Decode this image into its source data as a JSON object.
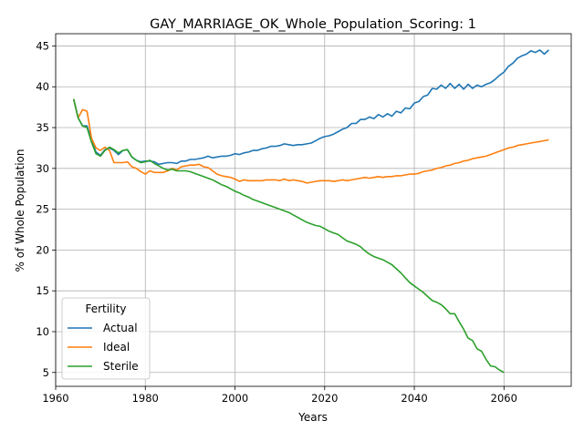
{
  "chart_data": {
    "type": "line",
    "title": "GAY_MARRIAGE_OK_Whole_Population_Scoring: 1",
    "xlabel": "Years",
    "ylabel": "% of Whole Population",
    "xlim": [
      1960,
      2075
    ],
    "ylim": [
      3.3,
      46.5
    ],
    "xticks": [
      1960,
      1980,
      2000,
      2020,
      2040,
      2060
    ],
    "yticks": [
      5,
      10,
      15,
      20,
      25,
      30,
      35,
      40,
      45
    ],
    "grid": true,
    "legend": {
      "title": "Fertility",
      "placement": "lower-left"
    },
    "series": [
      {
        "name": "Actual",
        "color": "#1f77b4",
        "x": [
          1964,
          1965,
          1966,
          1967,
          1968,
          1969,
          1970,
          1971,
          1972,
          1973,
          1974,
          1975,
          1976,
          1977,
          1978,
          1979,
          1980,
          1981,
          1982,
          1983,
          1984,
          1985,
          1986,
          1987,
          1988,
          1989,
          1990,
          1991,
          1992,
          1993,
          1994,
          1995,
          1996,
          1997,
          1998,
          1999,
          2000,
          2001,
          2002,
          2003,
          2004,
          2005,
          2006,
          2007,
          2008,
          2009,
          2010,
          2011,
          2012,
          2013,
          2014,
          2015,
          2016,
          2017,
          2018,
          2019,
          2020,
          2021,
          2022,
          2023,
          2024,
          2025,
          2026,
          2027,
          2028,
          2029,
          2030,
          2031,
          2032,
          2033,
          2034,
          2035,
          2036,
          2037,
          2038,
          2039,
          2040,
          2041,
          2042,
          2043,
          2044,
          2045,
          2046,
          2047,
          2048,
          2049,
          2050,
          2051,
          2052,
          2053,
          2054,
          2055,
          2056,
          2057,
          2058,
          2059,
          2060,
          2061,
          2062,
          2063,
          2064,
          2065,
          2066,
          2067,
          2068,
          2069,
          2070
        ],
        "values": [
          38.5,
          36.2,
          35.2,
          35.2,
          33.5,
          32.0,
          31.6,
          32.3,
          32.5,
          32.2,
          31.7,
          32.2,
          32.3,
          31.4,
          31.0,
          30.8,
          30.9,
          30.9,
          30.8,
          30.5,
          30.6,
          30.7,
          30.7,
          30.6,
          30.9,
          30.9,
          31.1,
          31.1,
          31.2,
          31.3,
          31.5,
          31.3,
          31.4,
          31.5,
          31.5,
          31.6,
          31.8,
          31.7,
          31.9,
          32.0,
          32.2,
          32.2,
          32.4,
          32.5,
          32.7,
          32.7,
          32.8,
          33.0,
          32.9,
          32.8,
          32.9,
          32.9,
          33.0,
          33.1,
          33.4,
          33.7,
          33.9,
          34.0,
          34.2,
          34.5,
          34.8,
          35.0,
          35.5,
          35.5,
          36.0,
          36.0,
          36.3,
          36.1,
          36.6,
          36.3,
          36.7,
          36.4,
          37.0,
          36.8,
          37.4,
          37.3,
          38.0,
          38.2,
          38.8,
          39.0,
          39.8,
          39.7,
          40.2,
          39.8,
          40.4,
          39.8,
          40.3,
          39.7,
          40.3,
          39.8,
          40.2,
          40.0,
          40.3,
          40.5,
          40.9,
          41.4,
          41.8,
          42.5,
          42.9,
          43.5,
          43.8,
          44.0,
          44.4,
          44.2,
          44.5,
          44.0,
          44.5
        ]
      },
      {
        "name": "Ideal",
        "color": "#ff7f0e",
        "x": [
          1964,
          1965,
          1966,
          1967,
          1968,
          1969,
          1970,
          1971,
          1972,
          1973,
          1974,
          1975,
          1976,
          1977,
          1978,
          1979,
          1980,
          1981,
          1982,
          1983,
          1984,
          1985,
          1986,
          1987,
          1988,
          1989,
          1990,
          1991,
          1992,
          1993,
          1994,
          1995,
          1996,
          1997,
          1998,
          1999,
          2000,
          2001,
          2002,
          2003,
          2004,
          2005,
          2006,
          2007,
          2008,
          2009,
          2010,
          2011,
          2012,
          2013,
          2014,
          2015,
          2016,
          2017,
          2018,
          2019,
          2020,
          2021,
          2022,
          2023,
          2024,
          2025,
          2026,
          2027,
          2028,
          2029,
          2030,
          2031,
          2032,
          2033,
          2034,
          2035,
          2036,
          2037,
          2038,
          2039,
          2040,
          2041,
          2042,
          2043,
          2044,
          2045,
          2046,
          2047,
          2048,
          2049,
          2050,
          2051,
          2052,
          2053,
          2054,
          2055,
          2056,
          2057,
          2058,
          2059,
          2060,
          2061,
          2062,
          2063,
          2064,
          2065,
          2066,
          2067,
          2068,
          2069,
          2070
        ],
        "values": [
          38.5,
          36.2,
          37.2,
          37.0,
          33.7,
          32.5,
          32.2,
          32.6,
          32.2,
          30.7,
          30.7,
          30.7,
          30.8,
          30.2,
          30.0,
          29.6,
          29.3,
          29.7,
          29.5,
          29.5,
          29.5,
          29.7,
          30.0,
          29.8,
          30.2,
          30.3,
          30.4,
          30.4,
          30.5,
          30.2,
          30.1,
          29.7,
          29.3,
          29.1,
          29.0,
          28.9,
          28.7,
          28.4,
          28.6,
          28.5,
          28.5,
          28.5,
          28.5,
          28.6,
          28.6,
          28.6,
          28.5,
          28.7,
          28.5,
          28.6,
          28.5,
          28.4,
          28.2,
          28.3,
          28.4,
          28.5,
          28.5,
          28.5,
          28.4,
          28.5,
          28.6,
          28.5,
          28.6,
          28.7,
          28.8,
          28.9,
          28.8,
          28.9,
          29.0,
          28.9,
          29.0,
          29.0,
          29.1,
          29.1,
          29.2,
          29.3,
          29.3,
          29.4,
          29.6,
          29.7,
          29.8,
          30.0,
          30.1,
          30.3,
          30.4,
          30.6,
          30.7,
          30.9,
          31.0,
          31.2,
          31.3,
          31.4,
          31.5,
          31.7,
          31.9,
          32.1,
          32.3,
          32.5,
          32.6,
          32.8,
          32.9,
          33.0,
          33.1,
          33.2,
          33.3,
          33.4,
          33.5
        ]
      },
      {
        "name": "Sterile",
        "color": "#2ca02c",
        "x": [
          1964,
          1965,
          1966,
          1967,
          1968,
          1969,
          1970,
          1971,
          1972,
          1973,
          1974,
          1975,
          1976,
          1977,
          1978,
          1979,
          1980,
          1981,
          1982,
          1983,
          1984,
          1985,
          1986,
          1987,
          1988,
          1989,
          1990,
          1991,
          1992,
          1993,
          1994,
          1995,
          1996,
          1997,
          1998,
          1999,
          2000,
          2001,
          2002,
          2003,
          2004,
          2005,
          2006,
          2007,
          2008,
          2009,
          2010,
          2011,
          2012,
          2013,
          2014,
          2015,
          2016,
          2017,
          2018,
          2019,
          2020,
          2021,
          2022,
          2023,
          2024,
          2025,
          2026,
          2027,
          2028,
          2029,
          2030,
          2031,
          2032,
          2033,
          2034,
          2035,
          2036,
          2037,
          2038,
          2039,
          2040,
          2041,
          2042,
          2043,
          2044,
          2045,
          2046,
          2047,
          2048,
          2049,
          2050,
          2051,
          2052,
          2053,
          2054,
          2055,
          2056,
          2057,
          2058,
          2059,
          2060
        ],
        "values": [
          38.5,
          36.2,
          35.2,
          35.0,
          33.2,
          31.8,
          31.5,
          32.2,
          32.6,
          32.3,
          31.9,
          32.2,
          32.3,
          31.4,
          31.0,
          30.7,
          30.8,
          31.0,
          30.6,
          30.3,
          30.0,
          29.8,
          29.9,
          29.7,
          29.7,
          29.7,
          29.6,
          29.4,
          29.2,
          29.0,
          28.8,
          28.6,
          28.3,
          28.0,
          27.8,
          27.5,
          27.2,
          27.0,
          26.7,
          26.5,
          26.2,
          26.0,
          25.8,
          25.6,
          25.4,
          25.2,
          25.0,
          24.8,
          24.6,
          24.3,
          24.0,
          23.7,
          23.4,
          23.2,
          23.0,
          22.9,
          22.6,
          22.3,
          22.1,
          21.9,
          21.5,
          21.1,
          20.9,
          20.7,
          20.4,
          19.9,
          19.5,
          19.2,
          19.0,
          18.8,
          18.5,
          18.2,
          17.7,
          17.2,
          16.6,
          16.0,
          15.6,
          15.2,
          14.8,
          14.3,
          13.8,
          13.6,
          13.3,
          12.8,
          12.2,
          12.2,
          11.2,
          10.3,
          9.2,
          8.9,
          7.9,
          7.6,
          6.6,
          5.8,
          5.7,
          5.3,
          5.0
        ]
      }
    ]
  }
}
